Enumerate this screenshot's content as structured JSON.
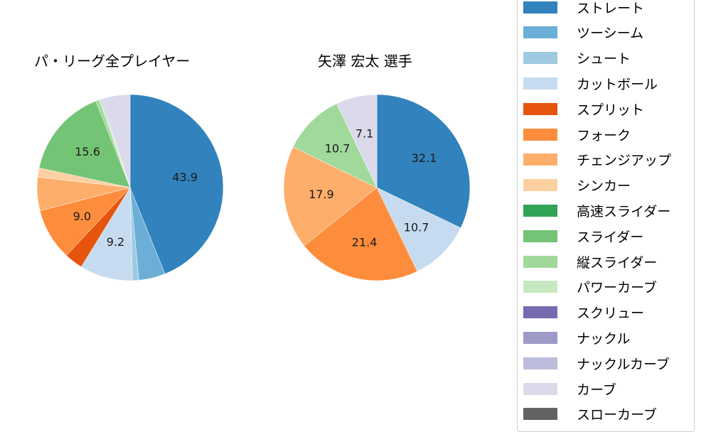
{
  "chart_data": [
    {
      "type": "pie",
      "title": "パ・リーグ全プレイヤー",
      "start_angle": 90,
      "direction": "clockwise",
      "categories": [
        "ストレート",
        "ツーシーム",
        "シュート",
        "カットボール",
        "スプリット",
        "フォーク",
        "チェンジアップ",
        "シンカー",
        "スライダー",
        "縦スライダー",
        "パワーカーブ",
        "ナックルカーブ",
        "カーブ"
      ],
      "values": [
        43.9,
        4.6,
        1.1,
        9.2,
        3.2,
        9.0,
        5.8,
        1.6,
        15.6,
        0.6,
        0.3,
        0.2,
        4.9
      ],
      "labels_shown": [
        "43.9",
        "",
        "",
        "9.2",
        "",
        "9.0",
        "",
        "",
        "15.6",
        "",
        "",
        "",
        ""
      ]
    },
    {
      "type": "pie",
      "title": "矢澤 宏太  選手",
      "start_angle": 90,
      "direction": "clockwise",
      "categories": [
        "ストレート",
        "カットボール",
        "フォーク",
        "チェンジアップ",
        "縦スライダー",
        "カーブ"
      ],
      "values": [
        32.1,
        10.7,
        21.4,
        17.9,
        10.7,
        7.1
      ],
      "labels_shown": [
        "32.1",
        "10.7",
        "21.4",
        "17.9",
        "10.7",
        "7.1"
      ]
    }
  ],
  "titles": {
    "left": "パ・リーグ全プレイヤー",
    "right": "矢澤 宏太  選手"
  },
  "legend": {
    "position": "right",
    "items": [
      {
        "label": "ストレート",
        "color": "#3182bd"
      },
      {
        "label": "ツーシーム",
        "color": "#6baed6"
      },
      {
        "label": "シュート",
        "color": "#9ecae1"
      },
      {
        "label": "カットボール",
        "color": "#c6dbef"
      },
      {
        "label": "スプリット",
        "color": "#e6550d"
      },
      {
        "label": "フォーク",
        "color": "#fd8d3c"
      },
      {
        "label": "チェンジアップ",
        "color": "#fdae6b"
      },
      {
        "label": "シンカー",
        "color": "#fdd0a2"
      },
      {
        "label": "高速スライダー",
        "color": "#31a354"
      },
      {
        "label": "スライダー",
        "color": "#74c476"
      },
      {
        "label": "縦スライダー",
        "color": "#a1d99b"
      },
      {
        "label": "パワーカーブ",
        "color": "#c7e9c0"
      },
      {
        "label": "スクリュー",
        "color": "#756bb1"
      },
      {
        "label": "ナックル",
        "color": "#9e9ac8"
      },
      {
        "label": "ナックルカーブ",
        "color": "#bcbddc"
      },
      {
        "label": "カーブ",
        "color": "#dadaeb"
      },
      {
        "label": "スローカーブ",
        "color": "#636363"
      }
    ]
  }
}
